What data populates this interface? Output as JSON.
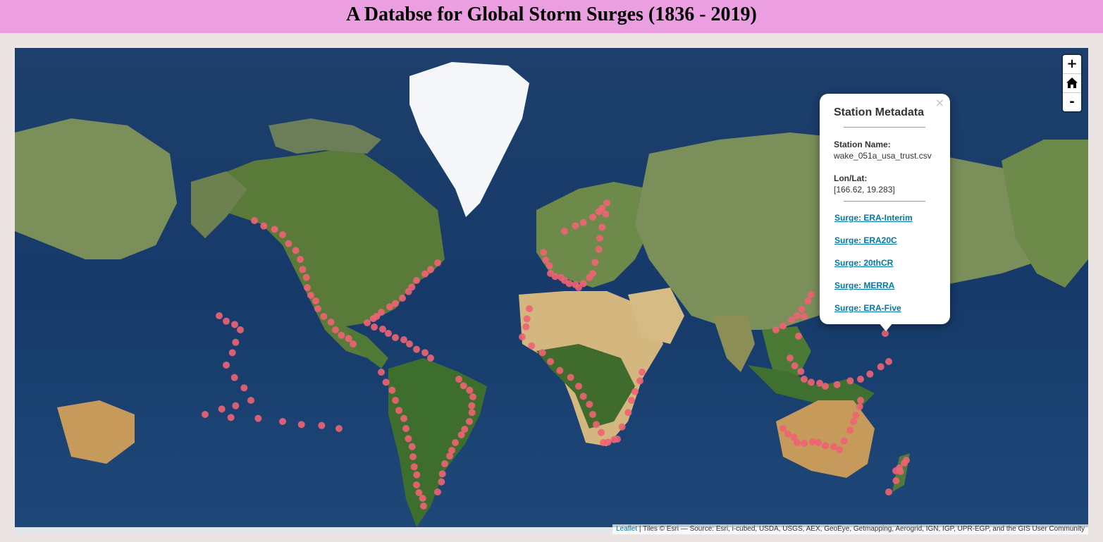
{
  "header": {
    "title": "A Databse for Global Storm Surges (1836 - 2019)"
  },
  "controls": {
    "zoom_in": "+",
    "home": "home-icon",
    "zoom_out": "-"
  },
  "popup": {
    "close": "×",
    "title": "Station Metadata",
    "station_name_label": "Station Name:",
    "station_name": "wake_051a_usa_trust.csv",
    "lonlat_label": "Lon/Lat:",
    "lonlat": "[166.62, 19.283]",
    "links": [
      "Surge: ERA-Interim",
      "Surge: ERA20C",
      "Surge: 20thCR",
      "Surge: MERRA",
      "Surge: ERA-Five"
    ]
  },
  "attribution": {
    "leaflet": "Leaflet",
    "text": " | Tiles © Esri — Source: Esri, i-cubed, USDA, USGS, AEX, GeoEye, Getmapping, Aerogrid, IGN, IGP, UPR-EGP, and the GIS User Community"
  },
  "colors": {
    "header_bg": "#eb9ee0",
    "marker": "#ee6373",
    "ocean": "#1b3d6e",
    "land": "#5f7a3c",
    "desert": "#c9ae7a",
    "ice": "#f4f6f8"
  }
}
